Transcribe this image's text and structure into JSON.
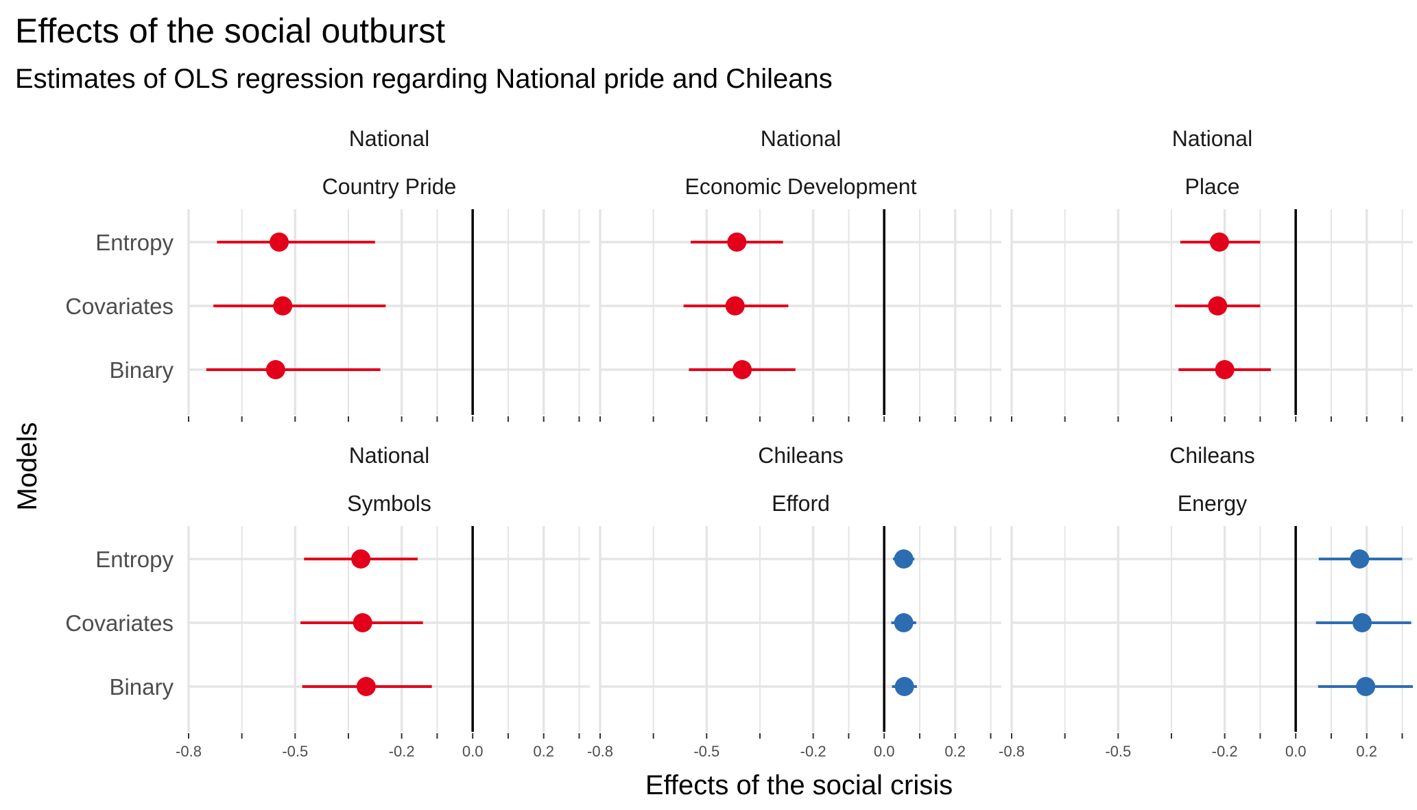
{
  "chart_data": {
    "type": "scatter",
    "title": "Effects of the social outburst",
    "subtitle": "Estimates of OLS regression regarding National pride and Chileans",
    "xlabel": "Effects of the social crisis",
    "ylabel": "Models",
    "xlim": [
      -0.8,
      0.33
    ],
    "x_ticks": [
      "-0.8",
      "-0.5",
      "-0.2",
      "0.0",
      "0.2"
    ],
    "x_tick_values": [
      -0.8,
      -0.5,
      -0.2,
      0.0,
      0.2
    ],
    "y_categories": [
      "Entropy",
      "Covariates",
      "Binary"
    ],
    "reference_line": 0,
    "grid": true,
    "colors": {
      "negative": "#E3001B",
      "positive": "#2C6DB2",
      "reference": "#000000",
      "grid": "#E5E5E5"
    },
    "panels": [
      {
        "group": "National",
        "name": "Country Pride",
        "points": [
          {
            "model": "Entropy",
            "estimate": -0.545,
            "lower": -0.72,
            "upper": -0.275
          },
          {
            "model": "Covariates",
            "estimate": -0.535,
            "lower": -0.73,
            "upper": -0.245
          },
          {
            "model": "Binary",
            "estimate": -0.555,
            "lower": -0.75,
            "upper": -0.26
          }
        ]
      },
      {
        "group": "National",
        "name": "Economic Development",
        "points": [
          {
            "model": "Entropy",
            "estimate": -0.415,
            "lower": -0.545,
            "upper": -0.285
          },
          {
            "model": "Covariates",
            "estimate": -0.42,
            "lower": -0.565,
            "upper": -0.27
          },
          {
            "model": "Binary",
            "estimate": -0.4,
            "lower": -0.55,
            "upper": -0.25
          }
        ]
      },
      {
        "group": "National",
        "name": "Place",
        "points": [
          {
            "model": "Entropy",
            "estimate": -0.215,
            "lower": -0.325,
            "upper": -0.1
          },
          {
            "model": "Covariates",
            "estimate": -0.22,
            "lower": -0.34,
            "upper": -0.1
          },
          {
            "model": "Binary",
            "estimate": -0.2,
            "lower": -0.33,
            "upper": -0.07
          }
        ]
      },
      {
        "group": "National",
        "name": "Symbols",
        "points": [
          {
            "model": "Entropy",
            "estimate": -0.315,
            "lower": -0.475,
            "upper": -0.155
          },
          {
            "model": "Covariates",
            "estimate": -0.31,
            "lower": -0.485,
            "upper": -0.14
          },
          {
            "model": "Binary",
            "estimate": -0.3,
            "lower": -0.48,
            "upper": -0.115
          }
        ]
      },
      {
        "group": "Chileans",
        "name": "Efford",
        "points": [
          {
            "model": "Entropy",
            "estimate": 0.055,
            "lower": 0.025,
            "upper": 0.085
          },
          {
            "model": "Covariates",
            "estimate": 0.055,
            "lower": 0.02,
            "upper": 0.09
          },
          {
            "model": "Binary",
            "estimate": 0.057,
            "lower": 0.022,
            "upper": 0.092
          }
        ]
      },
      {
        "group": "Chileans",
        "name": "Energy",
        "points": [
          {
            "model": "Entropy",
            "estimate": 0.18,
            "lower": 0.065,
            "upper": 0.3
          },
          {
            "model": "Covariates",
            "estimate": 0.187,
            "lower": 0.057,
            "upper": 0.325
          },
          {
            "model": "Binary",
            "estimate": 0.197,
            "lower": 0.063,
            "upper": 0.33
          }
        ]
      }
    ]
  }
}
